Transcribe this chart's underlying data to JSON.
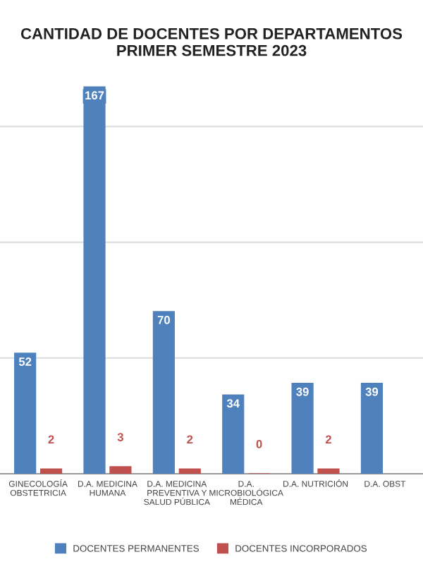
{
  "chart_data": {
    "type": "bar",
    "title": "CANTIDAD DE DOCENTES POR DEPARTAMENTOS\nPRIMER SEMESTRE 2023",
    "categories": [
      "GINECOLOGÍA\nOBSTETRICIA",
      "D.A. MEDICINA\nHUMANA",
      "D.A. MEDICINA\nPREVENTIVA Y\nSALUD PÚBLICA",
      "D.A.\nMICROBIOLÓGICA\nMÉDICA",
      "D.A. NUTRICIÓN",
      "D.A. OBST"
    ],
    "series": [
      {
        "name": "DOCENTES PERMANENTES",
        "color": "#4f81bd",
        "values": [
          52,
          167,
          70,
          34,
          39,
          39
        ]
      },
      {
        "name": "DOCENTES INCORPORADOS",
        "color": "#c0504d",
        "values": [
          2,
          3,
          2,
          0,
          2,
          null
        ]
      }
    ],
    "yticks": [
      {
        "value": 50,
        "label": null
      },
      {
        "value": 100,
        "label": null
      },
      {
        "value": 150,
        "label": null
      }
    ],
    "tick_labels": "x",
    "grid": "y",
    "legend": "bottom",
    "data_labels": true
  }
}
